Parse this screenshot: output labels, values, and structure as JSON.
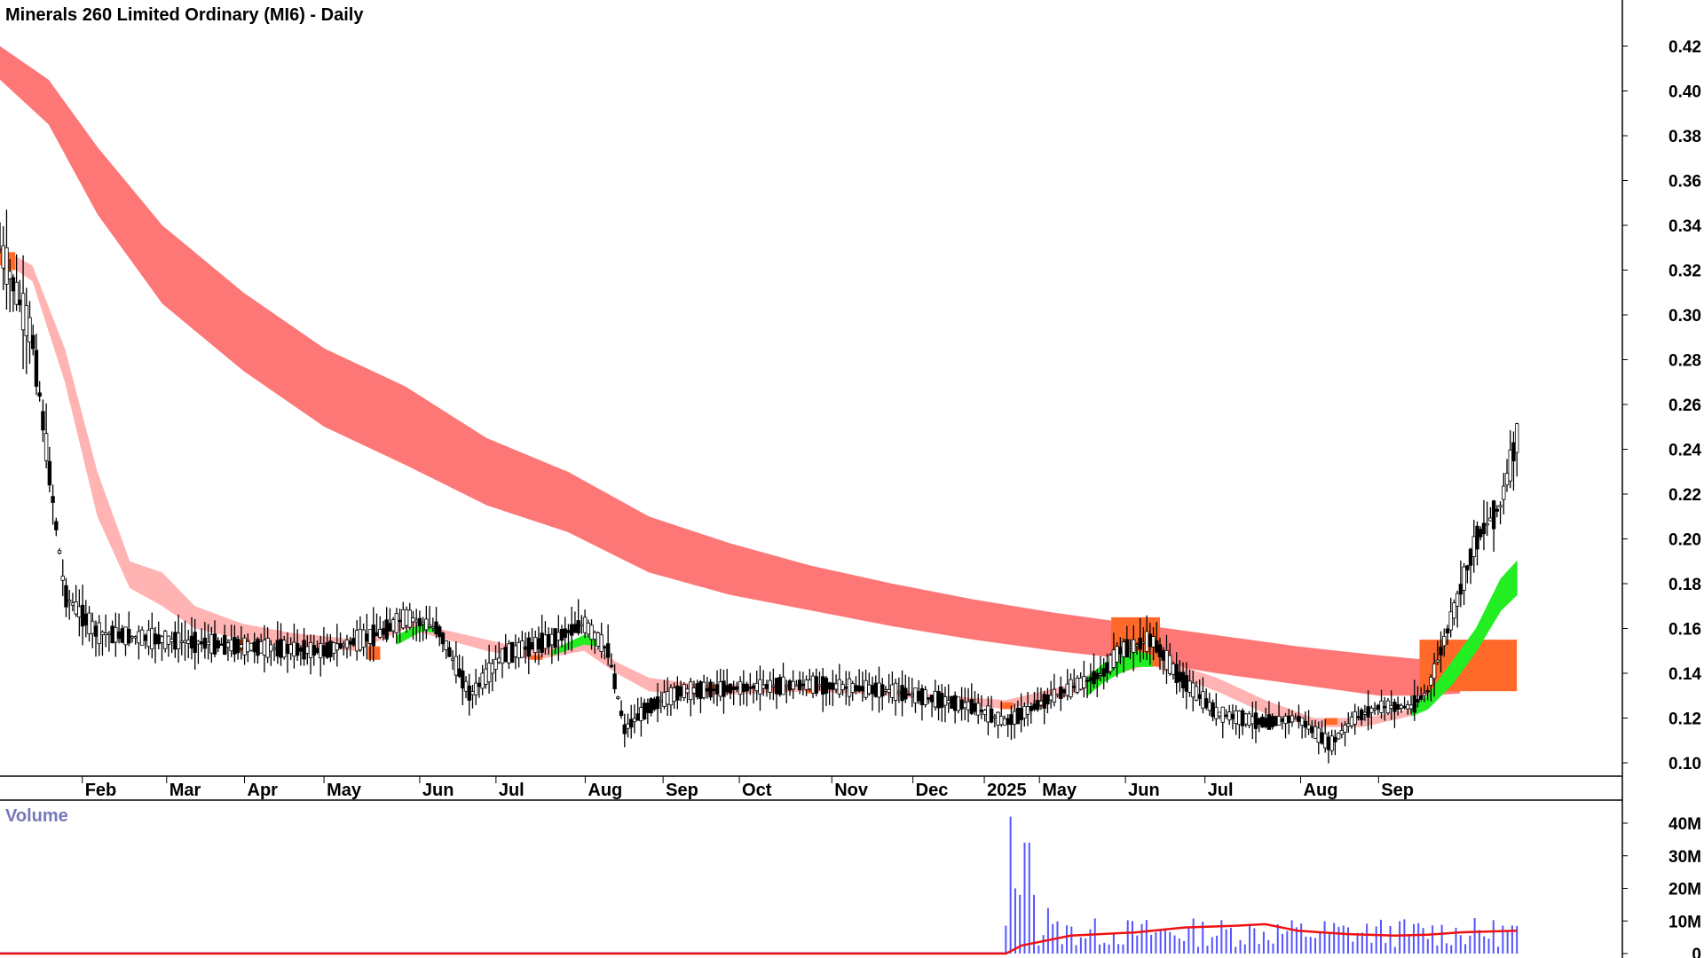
{
  "colors": {
    "long_band": "#fe7777",
    "short_band": "#ffb3b3",
    "bull": "#22ee22",
    "bear": "#ff6a2a",
    "candle": "#000000",
    "volume_bar": "#5555ff",
    "volume_ma": "#ee1111",
    "volume_label": "#7777bb",
    "axis": "#000000"
  },
  "chart_data": [
    {
      "type": "candlestick",
      "title": "Minerals 260 Limited Ordinary (MI6) - Daily",
      "ylim": [
        0.09,
        0.43
      ],
      "y_ticks": [
        "0.42",
        "0.40",
        "0.38",
        "0.36",
        "0.34",
        "0.32",
        "0.30",
        "0.28",
        "0.26",
        "0.24",
        "0.22",
        "0.20",
        "0.18",
        "0.16",
        "0.14",
        "0.12",
        "0.10"
      ],
      "x_labels": [
        "Feb",
        "Mar",
        "Apr",
        "May",
        "Jun",
        "Jul",
        "Aug",
        "Sep",
        "Oct",
        "Nov",
        "Dec",
        "2025",
        "May",
        "Jun",
        "Jul",
        "Aug",
        "Sep"
      ],
      "price_path": [
        [
          0.0,
          0.33
        ],
        [
          0.02,
          0.29
        ],
        [
          0.04,
          0.175
        ],
        [
          0.06,
          0.158
        ],
        [
          0.1,
          0.155
        ],
        [
          0.15,
          0.152
        ],
        [
          0.2,
          0.15
        ],
        [
          0.235,
          0.158
        ],
        [
          0.25,
          0.165
        ],
        [
          0.27,
          0.16
        ],
        [
          0.29,
          0.13
        ],
        [
          0.31,
          0.148
        ],
        [
          0.34,
          0.155
        ],
        [
          0.36,
          0.162
        ],
        [
          0.375,
          0.15
        ],
        [
          0.385,
          0.115
        ],
        [
          0.4,
          0.125
        ],
        [
          0.42,
          0.132
        ],
        [
          0.47,
          0.134
        ],
        [
          0.5,
          0.135
        ],
        [
          0.55,
          0.132
        ],
        [
          0.58,
          0.128
        ],
        [
          0.6,
          0.125
        ],
        [
          0.62,
          0.118
        ],
        [
          0.65,
          0.13
        ],
        [
          0.68,
          0.14
        ],
        [
          0.69,
          0.15
        ],
        [
          0.71,
          0.155
        ],
        [
          0.725,
          0.14
        ],
        [
          0.75,
          0.122
        ],
        [
          0.78,
          0.118
        ],
        [
          0.8,
          0.12
        ],
        [
          0.82,
          0.108
        ],
        [
          0.835,
          0.12
        ],
        [
          0.85,
          0.125
        ],
        [
          0.87,
          0.125
        ],
        [
          0.88,
          0.132
        ],
        [
          0.895,
          0.165
        ],
        [
          0.91,
          0.2
        ],
        [
          0.925,
          0.215
        ],
        [
          0.935,
          0.245
        ]
      ],
      "long_band": {
        "upper": [
          [
            0.0,
            0.42
          ],
          [
            0.03,
            0.405
          ],
          [
            0.06,
            0.375
          ],
          [
            0.1,
            0.34
          ],
          [
            0.15,
            0.31
          ],
          [
            0.2,
            0.285
          ],
          [
            0.25,
            0.268
          ],
          [
            0.3,
            0.245
          ],
          [
            0.35,
            0.23
          ],
          [
            0.4,
            0.21
          ],
          [
            0.45,
            0.198
          ],
          [
            0.5,
            0.188
          ],
          [
            0.55,
            0.18
          ],
          [
            0.6,
            0.173
          ],
          [
            0.65,
            0.167
          ],
          [
            0.7,
            0.162
          ],
          [
            0.75,
            0.157
          ],
          [
            0.8,
            0.152
          ],
          [
            0.85,
            0.148
          ],
          [
            0.88,
            0.146
          ],
          [
            0.9,
            0.145
          ]
        ],
        "lower": [
          [
            0.0,
            0.405
          ],
          [
            0.03,
            0.385
          ],
          [
            0.06,
            0.345
          ],
          [
            0.1,
            0.305
          ],
          [
            0.15,
            0.275
          ],
          [
            0.2,
            0.25
          ],
          [
            0.25,
            0.233
          ],
          [
            0.3,
            0.215
          ],
          [
            0.35,
            0.203
          ],
          [
            0.4,
            0.185
          ],
          [
            0.45,
            0.175
          ],
          [
            0.5,
            0.168
          ],
          [
            0.55,
            0.161
          ],
          [
            0.6,
            0.155
          ],
          [
            0.65,
            0.15
          ],
          [
            0.7,
            0.146
          ],
          [
            0.75,
            0.14
          ],
          [
            0.8,
            0.135
          ],
          [
            0.85,
            0.13
          ],
          [
            0.88,
            0.13
          ],
          [
            0.9,
            0.131
          ]
        ]
      },
      "short_band": {
        "upper": [
          [
            0.0,
            0.33
          ],
          [
            0.02,
            0.322
          ],
          [
            0.04,
            0.285
          ],
          [
            0.06,
            0.23
          ],
          [
            0.08,
            0.19
          ],
          [
            0.1,
            0.185
          ],
          [
            0.12,
            0.17
          ],
          [
            0.15,
            0.162
          ],
          [
            0.18,
            0.158
          ],
          [
            0.22,
            0.155
          ],
          [
            0.25,
            0.165
          ],
          [
            0.27,
            0.16
          ],
          [
            0.3,
            0.155
          ],
          [
            0.33,
            0.15
          ],
          [
            0.36,
            0.155
          ],
          [
            0.38,
            0.145
          ],
          [
            0.4,
            0.138
          ],
          [
            0.43,
            0.135
          ],
          [
            0.5,
            0.135
          ],
          [
            0.55,
            0.133
          ],
          [
            0.58,
            0.13
          ],
          [
            0.62,
            0.128
          ],
          [
            0.66,
            0.135
          ],
          [
            0.69,
            0.147
          ],
          [
            0.71,
            0.15
          ],
          [
            0.72,
            0.145
          ],
          [
            0.75,
            0.138
          ],
          [
            0.78,
            0.128
          ],
          [
            0.81,
            0.12
          ],
          [
            0.84,
            0.12
          ],
          [
            0.87,
            0.124
          ],
          [
            0.88,
            0.127
          ]
        ],
        "lower": [
          [
            0.0,
            0.325
          ],
          [
            0.02,
            0.315
          ],
          [
            0.04,
            0.27
          ],
          [
            0.06,
            0.21
          ],
          [
            0.08,
            0.178
          ],
          [
            0.1,
            0.17
          ],
          [
            0.12,
            0.16
          ],
          [
            0.15,
            0.155
          ],
          [
            0.18,
            0.152
          ],
          [
            0.22,
            0.15
          ],
          [
            0.25,
            0.16
          ],
          [
            0.27,
            0.156
          ],
          [
            0.3,
            0.15
          ],
          [
            0.33,
            0.146
          ],
          [
            0.36,
            0.15
          ],
          [
            0.38,
            0.14
          ],
          [
            0.4,
            0.132
          ],
          [
            0.43,
            0.13
          ],
          [
            0.5,
            0.132
          ],
          [
            0.55,
            0.13
          ],
          [
            0.58,
            0.127
          ],
          [
            0.62,
            0.124
          ],
          [
            0.66,
            0.13
          ],
          [
            0.69,
            0.14
          ],
          [
            0.71,
            0.144
          ],
          [
            0.72,
            0.14
          ],
          [
            0.75,
            0.132
          ],
          [
            0.78,
            0.122
          ],
          [
            0.81,
            0.116
          ],
          [
            0.84,
            0.116
          ],
          [
            0.87,
            0.121
          ],
          [
            0.88,
            0.124
          ]
        ]
      },
      "bull_segments": [
        [
          [
            0.245,
            0.157,
            0.153
          ],
          [
            0.26,
            0.162,
            0.159
          ],
          [
            0.27,
            0.16,
            0.158
          ]
        ],
        [
          [
            0.34,
            0.15,
            0.148
          ],
          [
            0.36,
            0.157,
            0.153
          ],
          [
            0.37,
            0.155,
            0.152
          ]
        ],
        [
          [
            0.67,
            0.138,
            0.13
          ],
          [
            0.68,
            0.144,
            0.136
          ],
          [
            0.69,
            0.148,
            0.14
          ],
          [
            0.7,
            0.15,
            0.143
          ],
          [
            0.71,
            0.148,
            0.143
          ]
        ],
        [
          [
            0.87,
            0.124,
            0.121
          ],
          [
            0.88,
            0.13,
            0.124
          ],
          [
            0.895,
            0.145,
            0.135
          ],
          [
            0.91,
            0.16,
            0.15
          ],
          [
            0.925,
            0.182,
            0.168
          ],
          [
            0.935,
            0.19,
            0.175
          ]
        ]
      ],
      "bear_points": [
        [
          0.0,
          0.33,
          0.322
        ],
        [
          0.005,
          0.328,
          0.32
        ],
        [
          0.15,
          0.155,
          0.15
        ],
        [
          0.23,
          0.15,
          0.146
        ],
        [
          0.23,
          0.152,
          0.148
        ],
        [
          0.33,
          0.148,
          0.146
        ],
        [
          0.44,
          0.135,
          0.132
        ],
        [
          0.48,
          0.134,
          0.132
        ],
        [
          0.5,
          0.133,
          0.131
        ],
        [
          0.62,
          0.127,
          0.124
        ],
        [
          0.64,
          0.128,
          0.125
        ],
        [
          0.82,
          0.12,
          0.117
        ]
      ],
      "bear_blocks": [
        [
          0.685,
          0.715,
          0.165,
          0.143
        ],
        [
          0.875,
          0.935,
          0.155,
          0.132
        ]
      ]
    },
    {
      "type": "bar",
      "title": "Volume",
      "ylim": [
        0,
        45000000
      ],
      "y_ticks": [
        "40M",
        "30M",
        "20M",
        "10M",
        "0"
      ],
      "volume_start": 0.62,
      "volume_peaks": [
        [
          0.622,
          42000000
        ],
        [
          0.625,
          20000000
        ],
        [
          0.628,
          18000000
        ],
        [
          0.633,
          34000000
        ],
        [
          0.638,
          18000000
        ],
        [
          0.645,
          14000000
        ]
      ],
      "volume_ma": [
        [
          0.0,
          0
        ],
        [
          0.62,
          0
        ],
        [
          0.63,
          2500000
        ],
        [
          0.66,
          5500000
        ],
        [
          0.7,
          6500000
        ],
        [
          0.73,
          8000000
        ],
        [
          0.76,
          8500000
        ],
        [
          0.78,
          9000000
        ],
        [
          0.8,
          7000000
        ],
        [
          0.83,
          6000000
        ],
        [
          0.86,
          5500000
        ],
        [
          0.88,
          5800000
        ],
        [
          0.9,
          6500000
        ],
        [
          0.935,
          7000000
        ]
      ]
    }
  ]
}
